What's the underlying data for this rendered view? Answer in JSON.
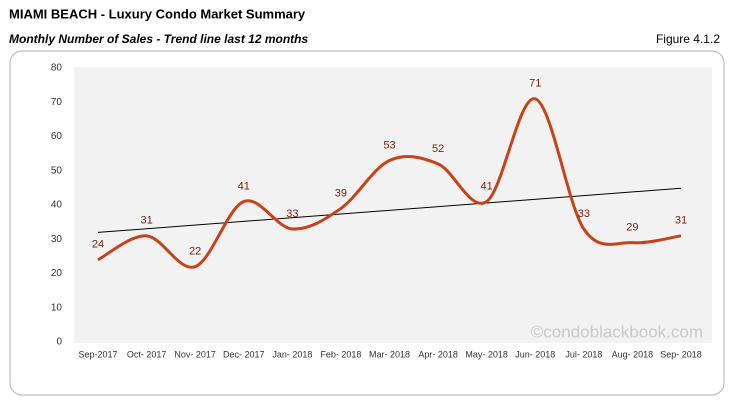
{
  "chart_data": {
    "type": "line",
    "title": "MIAMI BEACH - Luxury Condo Market Summary",
    "subtitle": "Monthly Number of Sales - Trend line last 12 months",
    "figure": "Figure 4.1.2",
    "watermark": "©condoblackbook.com",
    "categories": [
      "Sep-2017",
      "Oct- 2017",
      "Nov- 2017",
      "Dec- 2017",
      "Jan- 2018",
      "Feb- 2018",
      "Mar- 2018",
      "Apr- 2018",
      "May- 2018",
      "Jun- 2018",
      "Jul- 2018",
      "Aug- 2018",
      "Sep- 2018"
    ],
    "series": [
      {
        "color": "#c8431a",
        "values": [
          24,
          31,
          22,
          41,
          33,
          39,
          53,
          52,
          41,
          71,
          33,
          29,
          31
        ]
      }
    ],
    "trend_line": {
      "color": "#000000",
      "values": [
        32.0,
        44.9
      ]
    },
    "ylim": [
      0,
      80
    ],
    "yticks": [
      0,
      10,
      20,
      30,
      40,
      50,
      60,
      70,
      80
    ],
    "grid": false
  }
}
